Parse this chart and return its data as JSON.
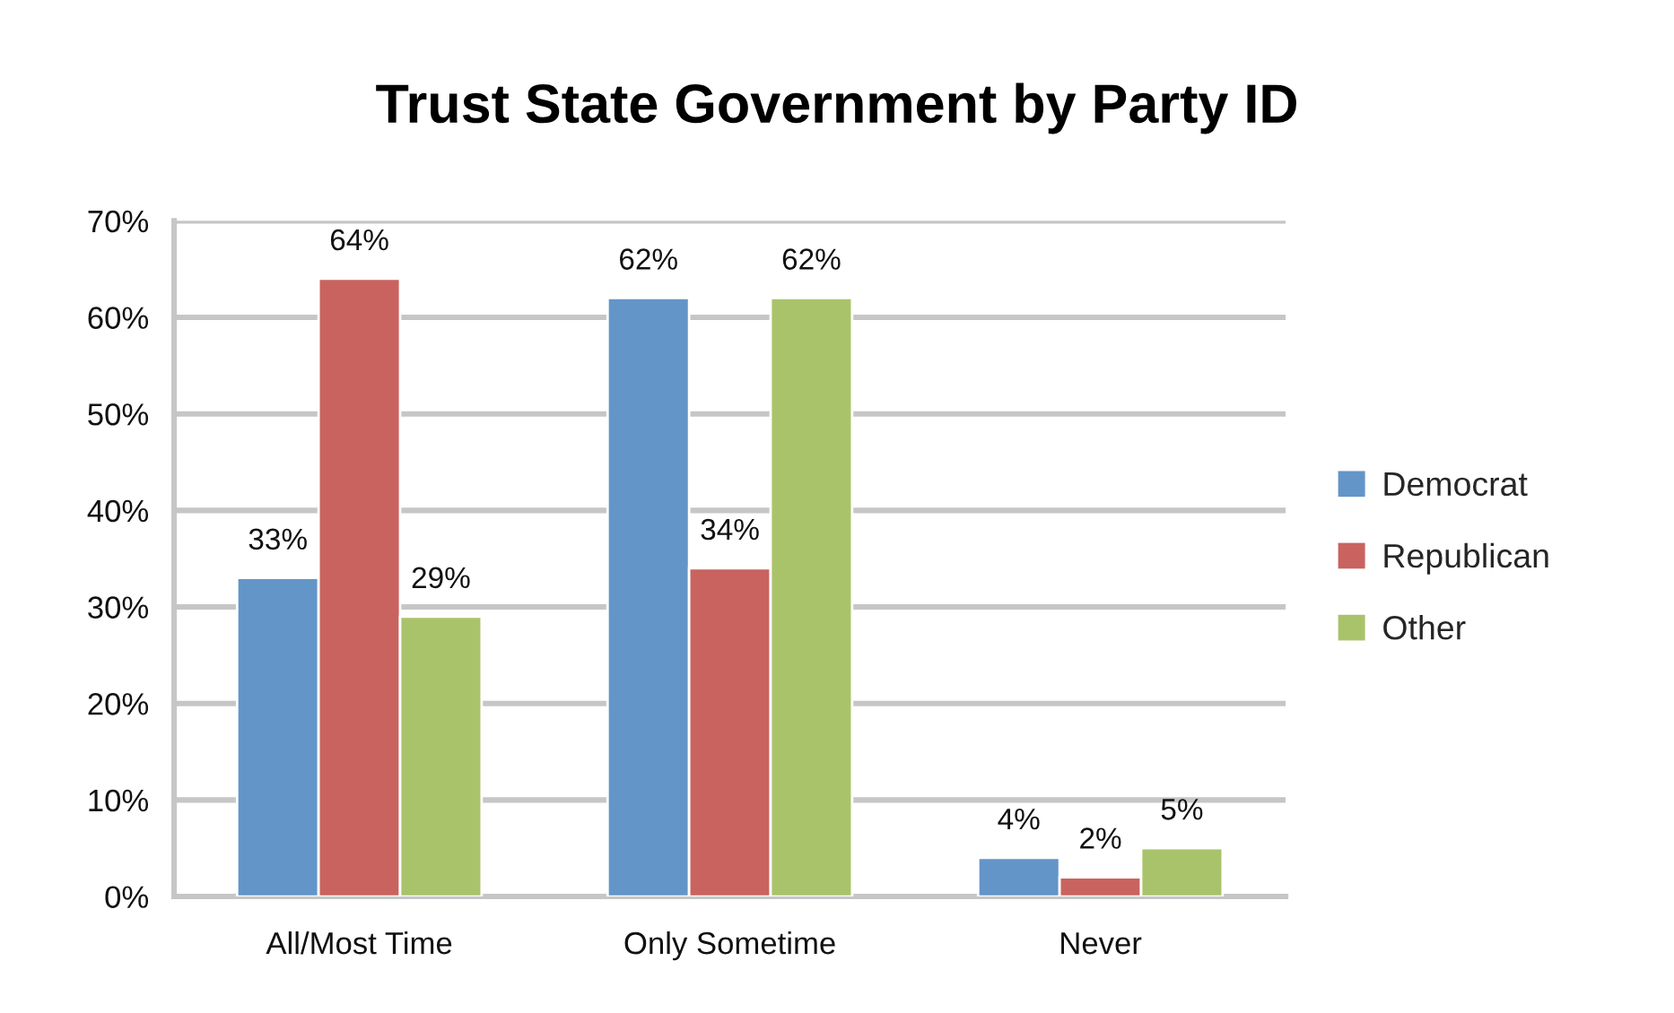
{
  "chart_data": {
    "type": "bar",
    "title": "Trust State Government by Party ID",
    "categories": [
      "All/Most Time",
      "Only Sometime",
      "Never"
    ],
    "series": [
      {
        "name": "Democrat",
        "color": "#6395c9",
        "values": [
          33,
          62,
          4
        ],
        "value_labels": [
          "33%",
          "62%",
          "4%"
        ]
      },
      {
        "name": "Republican",
        "color": "#c9635f",
        "values": [
          64,
          34,
          2
        ],
        "value_labels": [
          "64%",
          "34%",
          "2%"
        ]
      },
      {
        "name": "Other",
        "color": "#a9c36b",
        "values": [
          29,
          62,
          5
        ],
        "value_labels": [
          "29%",
          "62%",
          "5%"
        ]
      }
    ],
    "ylim": [
      0,
      70
    ],
    "yticks": [
      {
        "value": 0,
        "label": "0%"
      },
      {
        "value": 10,
        "label": "10%"
      },
      {
        "value": 20,
        "label": "20%"
      },
      {
        "value": 30,
        "label": "30%"
      },
      {
        "value": 40,
        "label": "40%"
      },
      {
        "value": 50,
        "label": "50%"
      },
      {
        "value": 60,
        "label": "60%"
      },
      {
        "value": 70,
        "label": "70%"
      }
    ],
    "grid": "y",
    "legend": "right"
  }
}
